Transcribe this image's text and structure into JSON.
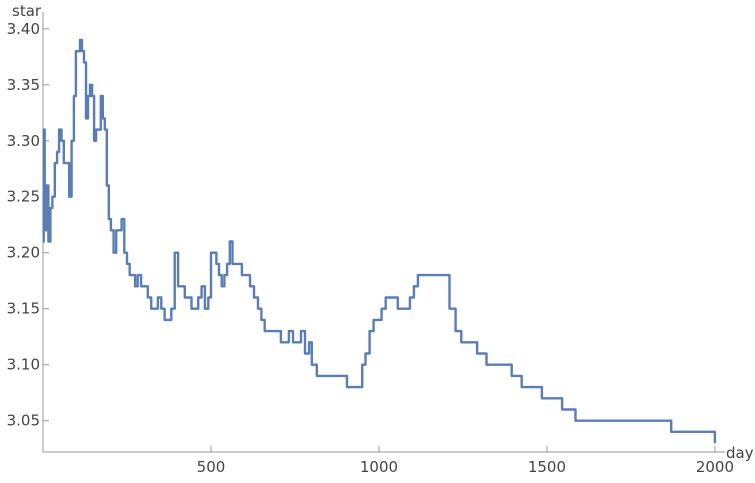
{
  "chart_data": {
    "type": "line",
    "title": "",
    "xlabel": "day",
    "ylabel": "star",
    "xlim": [
      0,
      2030
    ],
    "ylim": [
      3.022,
      3.415
    ],
    "grid": false,
    "x_ticks": [
      500,
      1000,
      1500,
      2000
    ],
    "y_ticks": [
      3.05,
      3.1,
      3.15,
      3.2,
      3.25,
      3.3,
      3.35,
      3.4
    ],
    "x_tick_labels": [
      "500",
      "1000",
      "1500",
      "2000"
    ],
    "y_tick_labels": [
      "3.05",
      "3.10",
      "3.15",
      "3.20",
      "3.25",
      "3.30",
      "3.35",
      "3.40"
    ],
    "colors": {
      "line": "#5a7db6",
      "axis": "#999999",
      "text": "#444444"
    },
    "series": [
      {
        "values": [
          [
            0,
            3.21
          ],
          [
            2,
            3.31
          ],
          [
            5,
            3.22
          ],
          [
            10,
            3.26
          ],
          [
            16,
            3.21
          ],
          [
            22,
            3.24
          ],
          [
            28,
            3.25
          ],
          [
            35,
            3.28
          ],
          [
            42,
            3.29
          ],
          [
            48,
            3.31
          ],
          [
            55,
            3.3
          ],
          [
            62,
            3.28
          ],
          [
            70,
            3.28
          ],
          [
            78,
            3.25
          ],
          [
            85,
            3.3
          ],
          [
            92,
            3.34
          ],
          [
            98,
            3.38
          ],
          [
            104,
            3.38
          ],
          [
            110,
            3.39
          ],
          [
            116,
            3.38
          ],
          [
            122,
            3.37
          ],
          [
            128,
            3.32
          ],
          [
            134,
            3.34
          ],
          [
            140,
            3.35
          ],
          [
            146,
            3.34
          ],
          [
            152,
            3.3
          ],
          [
            158,
            3.31
          ],
          [
            165,
            3.31
          ],
          [
            172,
            3.34
          ],
          [
            178,
            3.32
          ],
          [
            184,
            3.31
          ],
          [
            190,
            3.26
          ],
          [
            196,
            3.23
          ],
          [
            202,
            3.22
          ],
          [
            210,
            3.2
          ],
          [
            218,
            3.22
          ],
          [
            226,
            3.22
          ],
          [
            234,
            3.23
          ],
          [
            242,
            3.2
          ],
          [
            250,
            3.19
          ],
          [
            258,
            3.18
          ],
          [
            266,
            3.18
          ],
          [
            274,
            3.17
          ],
          [
            282,
            3.18
          ],
          [
            292,
            3.17
          ],
          [
            302,
            3.17
          ],
          [
            312,
            3.16
          ],
          [
            322,
            3.15
          ],
          [
            332,
            3.15
          ],
          [
            342,
            3.16
          ],
          [
            352,
            3.15
          ],
          [
            362,
            3.14
          ],
          [
            372,
            3.14
          ],
          [
            382,
            3.15
          ],
          [
            392,
            3.2
          ],
          [
            402,
            3.17
          ],
          [
            412,
            3.17
          ],
          [
            422,
            3.16
          ],
          [
            432,
            3.16
          ],
          [
            442,
            3.15
          ],
          [
            452,
            3.15
          ],
          [
            462,
            3.16
          ],
          [
            472,
            3.17
          ],
          [
            482,
            3.15
          ],
          [
            492,
            3.16
          ],
          [
            500,
            3.2
          ],
          [
            508,
            3.2
          ],
          [
            516,
            3.19
          ],
          [
            524,
            3.18
          ],
          [
            532,
            3.17
          ],
          [
            540,
            3.18
          ],
          [
            548,
            3.19
          ],
          [
            556,
            3.21
          ],
          [
            564,
            3.19
          ],
          [
            572,
            3.19
          ],
          [
            580,
            3.19
          ],
          [
            592,
            3.18
          ],
          [
            604,
            3.18
          ],
          [
            616,
            3.17
          ],
          [
            628,
            3.16
          ],
          [
            640,
            3.15
          ],
          [
            650,
            3.14
          ],
          [
            660,
            3.13
          ],
          [
            672,
            3.13
          ],
          [
            684,
            3.13
          ],
          [
            696,
            3.13
          ],
          [
            708,
            3.12
          ],
          [
            720,
            3.12
          ],
          [
            732,
            3.13
          ],
          [
            744,
            3.12
          ],
          [
            756,
            3.12
          ],
          [
            768,
            3.13
          ],
          [
            780,
            3.11
          ],
          [
            792,
            3.12
          ],
          [
            800,
            3.1
          ],
          [
            815,
            3.09
          ],
          [
            830,
            3.09
          ],
          [
            845,
            3.09
          ],
          [
            860,
            3.09
          ],
          [
            875,
            3.09
          ],
          [
            890,
            3.09
          ],
          [
            905,
            3.08
          ],
          [
            920,
            3.08
          ],
          [
            935,
            3.08
          ],
          [
            950,
            3.1
          ],
          [
            960,
            3.11
          ],
          [
            972,
            3.13
          ],
          [
            984,
            3.14
          ],
          [
            996,
            3.14
          ],
          [
            1008,
            3.15
          ],
          [
            1020,
            3.16
          ],
          [
            1032,
            3.16
          ],
          [
            1044,
            3.16
          ],
          [
            1056,
            3.15
          ],
          [
            1068,
            3.15
          ],
          [
            1080,
            3.15
          ],
          [
            1092,
            3.16
          ],
          [
            1104,
            3.17
          ],
          [
            1116,
            3.18
          ],
          [
            1128,
            3.18
          ],
          [
            1160,
            3.18
          ],
          [
            1190,
            3.18
          ],
          [
            1210,
            3.15
          ],
          [
            1228,
            3.13
          ],
          [
            1245,
            3.12
          ],
          [
            1262,
            3.12
          ],
          [
            1278,
            3.12
          ],
          [
            1292,
            3.11
          ],
          [
            1306,
            3.11
          ],
          [
            1320,
            3.1
          ],
          [
            1335,
            3.1
          ],
          [
            1350,
            3.1
          ],
          [
            1365,
            3.1
          ],
          [
            1380,
            3.1
          ],
          [
            1395,
            3.09
          ],
          [
            1410,
            3.09
          ],
          [
            1425,
            3.08
          ],
          [
            1440,
            3.08
          ],
          [
            1455,
            3.08
          ],
          [
            1470,
            3.08
          ],
          [
            1485,
            3.07
          ],
          [
            1500,
            3.07
          ],
          [
            1525,
            3.07
          ],
          [
            1545,
            3.06
          ],
          [
            1565,
            3.06
          ],
          [
            1585,
            3.05
          ],
          [
            1605,
            3.05
          ],
          [
            1620,
            3.05
          ],
          [
            1640,
            3.05
          ],
          [
            1660,
            3.05
          ],
          [
            1675,
            3.05
          ],
          [
            1690,
            3.05
          ],
          [
            1710,
            3.05
          ],
          [
            1730,
            3.05
          ],
          [
            1750,
            3.05
          ],
          [
            1770,
            3.05
          ],
          [
            1790,
            3.05
          ],
          [
            1810,
            3.05
          ],
          [
            1830,
            3.05
          ],
          [
            1850,
            3.05
          ],
          [
            1870,
            3.04
          ],
          [
            1900,
            3.04
          ],
          [
            1930,
            3.04
          ],
          [
            1960,
            3.04
          ],
          [
            1985,
            3.04
          ],
          [
            2000,
            3.03
          ]
        ]
      }
    ]
  }
}
